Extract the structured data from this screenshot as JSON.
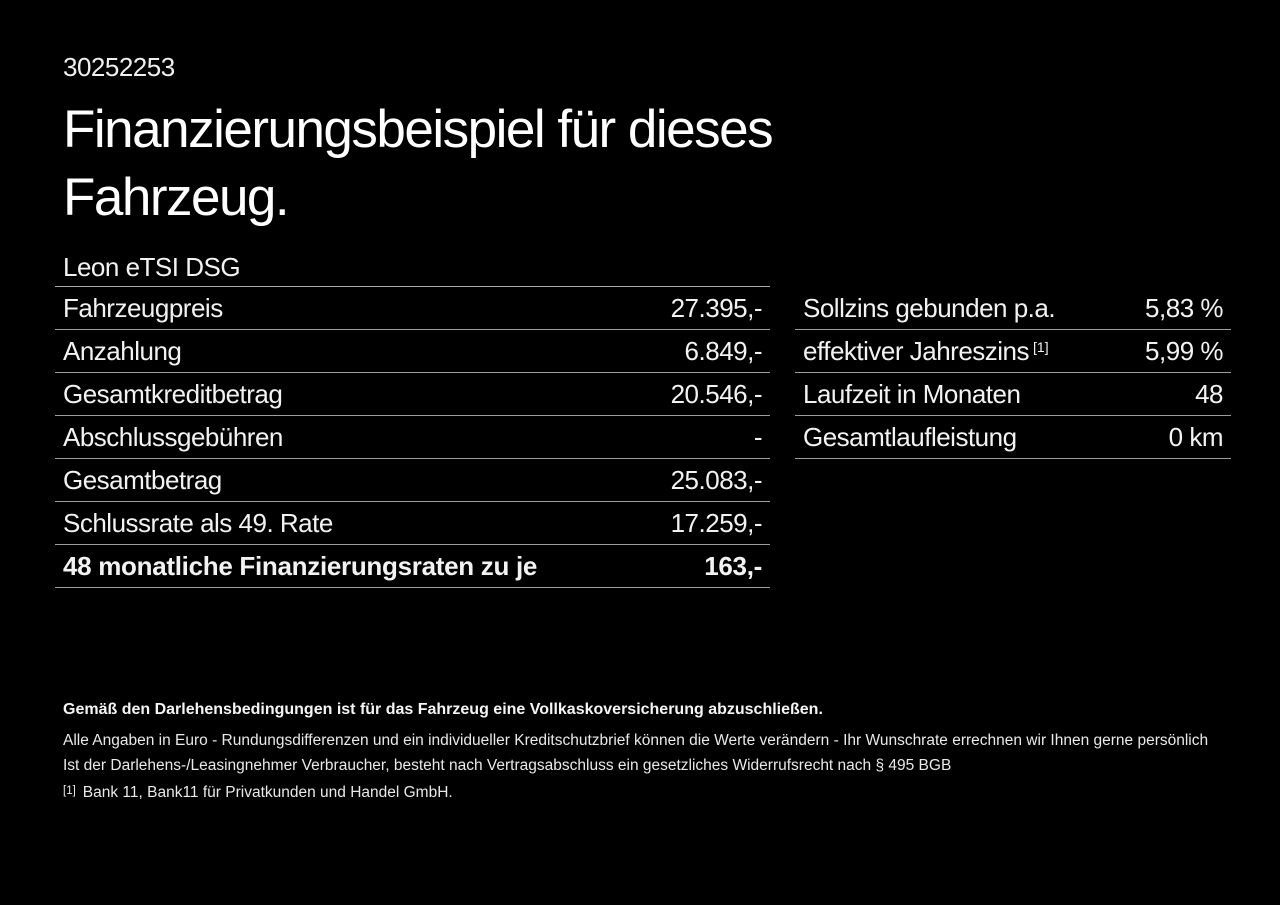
{
  "colors": {
    "background": "#000000",
    "text": "#f2f2f2",
    "divider": "#9d9d9d"
  },
  "header": {
    "document_id": "30252253",
    "title": "Finanzierungsbeispiel für dieses Fahrzeug.",
    "vehicle_model": "Leon eTSI DSG"
  },
  "financing_table": {
    "rows": [
      {
        "label": "Fahrzeugpreis",
        "value": "27.395,-"
      },
      {
        "label": "Anzahlung",
        "value": "6.849,-"
      },
      {
        "label": "Gesamtkreditbetrag",
        "value": "20.546,-"
      },
      {
        "label": "Abschlussgebühren",
        "value": "-"
      },
      {
        "label": "Gesamtbetrag",
        "value": "25.083,-"
      },
      {
        "label": "Schlussrate als 49. Rate",
        "value": "17.259,-"
      },
      {
        "label": "48 monatliche Finanzierungsraten zu je",
        "value": "163,-"
      }
    ]
  },
  "conditions_table": {
    "rows": [
      {
        "label": "Sollzins gebunden p.a.",
        "value": "5,83 %"
      },
      {
        "label": "effektiver Jahreszins",
        "footnote_marker": "[1]",
        "value": "5,99 %"
      },
      {
        "label": "Laufzeit in Monaten",
        "value": "48"
      },
      {
        "label": "Gesamtlaufleistung",
        "value": "0 km"
      }
    ]
  },
  "footer": {
    "insurance_note": "Gemäß den Darlehensbedingungen ist für das Fahrzeug eine Vollkaskoversicherung abzuschließen.",
    "note_rounding": "Alle Angaben in Euro - Rundungsdifferenzen und ein individueller Kreditschutzbrief können die Werte verändern - Ihr Wunschrate errechnen wir Ihnen gerne persönlich",
    "note_withdrawal": "Ist der Darlehens-/Leasingnehmer Verbraucher, besteht nach Vertragsabschluss ein gesetzliches Widerrufsrecht nach § 495 BGB",
    "footnote_marker": "[1]",
    "footnote_text": "Bank 11, Bank11 für Privatkunden und Handel GmbH."
  }
}
